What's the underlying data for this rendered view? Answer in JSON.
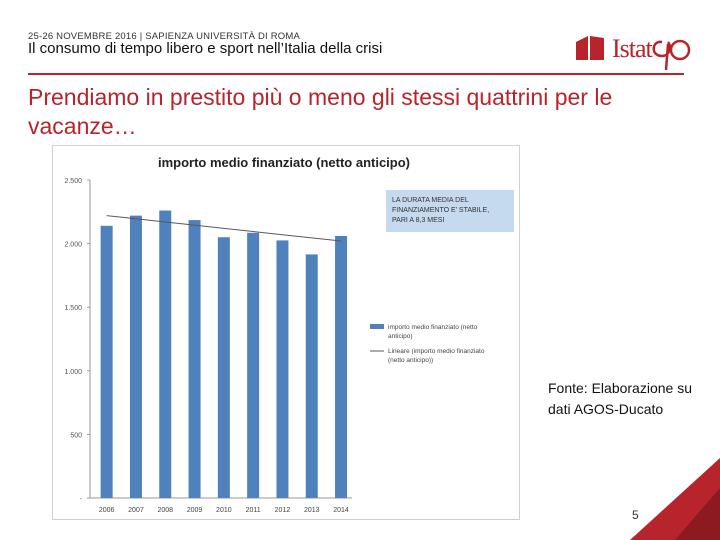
{
  "header": {
    "event": "25-26 NOVEMBRE 2016 | SAPIENZA UNIVERSITÀ DI ROMA",
    "title": "Il consumo di tempo libero e sport nell’Italia della crisi",
    "logo_text": "Istat"
  },
  "slide": {
    "title": "Prendiamo in prestito più o meno gli stessi quattrini per le vacanze…",
    "source": "Fonte: Elaborazione su dati AGOS-Ducato",
    "page_number": "5"
  },
  "colors": {
    "accent": "#b8242b",
    "bar": "#4f81bd",
    "trend": "#595959",
    "note_box": "#c5d9ef"
  },
  "chart_data": {
    "type": "bar",
    "title": "importo medio finanziato (netto anticipo)",
    "categories": [
      "2006",
      "2007",
      "2008",
      "2009",
      "2010",
      "2011",
      "2012",
      "2013",
      "2014"
    ],
    "series": [
      {
        "name": "importo medio finanziato (netto anticipo)",
        "values": [
          2140,
          2220,
          2260,
          2185,
          2050,
          2085,
          2025,
          1915,
          2060
        ]
      },
      {
        "name": "Lineare (importo medio finanziato (netto anticipo))",
        "type": "trendline",
        "values": [
          2220,
          2195,
          2170,
          2145,
          2120,
          2095,
          2070,
          2045,
          2020
        ]
      }
    ],
    "yticks": [
      "-",
      "500",
      "1.000",
      "1.500",
      "2.000",
      "2.500"
    ],
    "ylim": [
      0,
      2500
    ],
    "annotation": "LA DURATA MEDIA DEL FINANZIAMENTO E' STABILE, PARI A 8,3 MESI",
    "legend_position": "right"
  }
}
